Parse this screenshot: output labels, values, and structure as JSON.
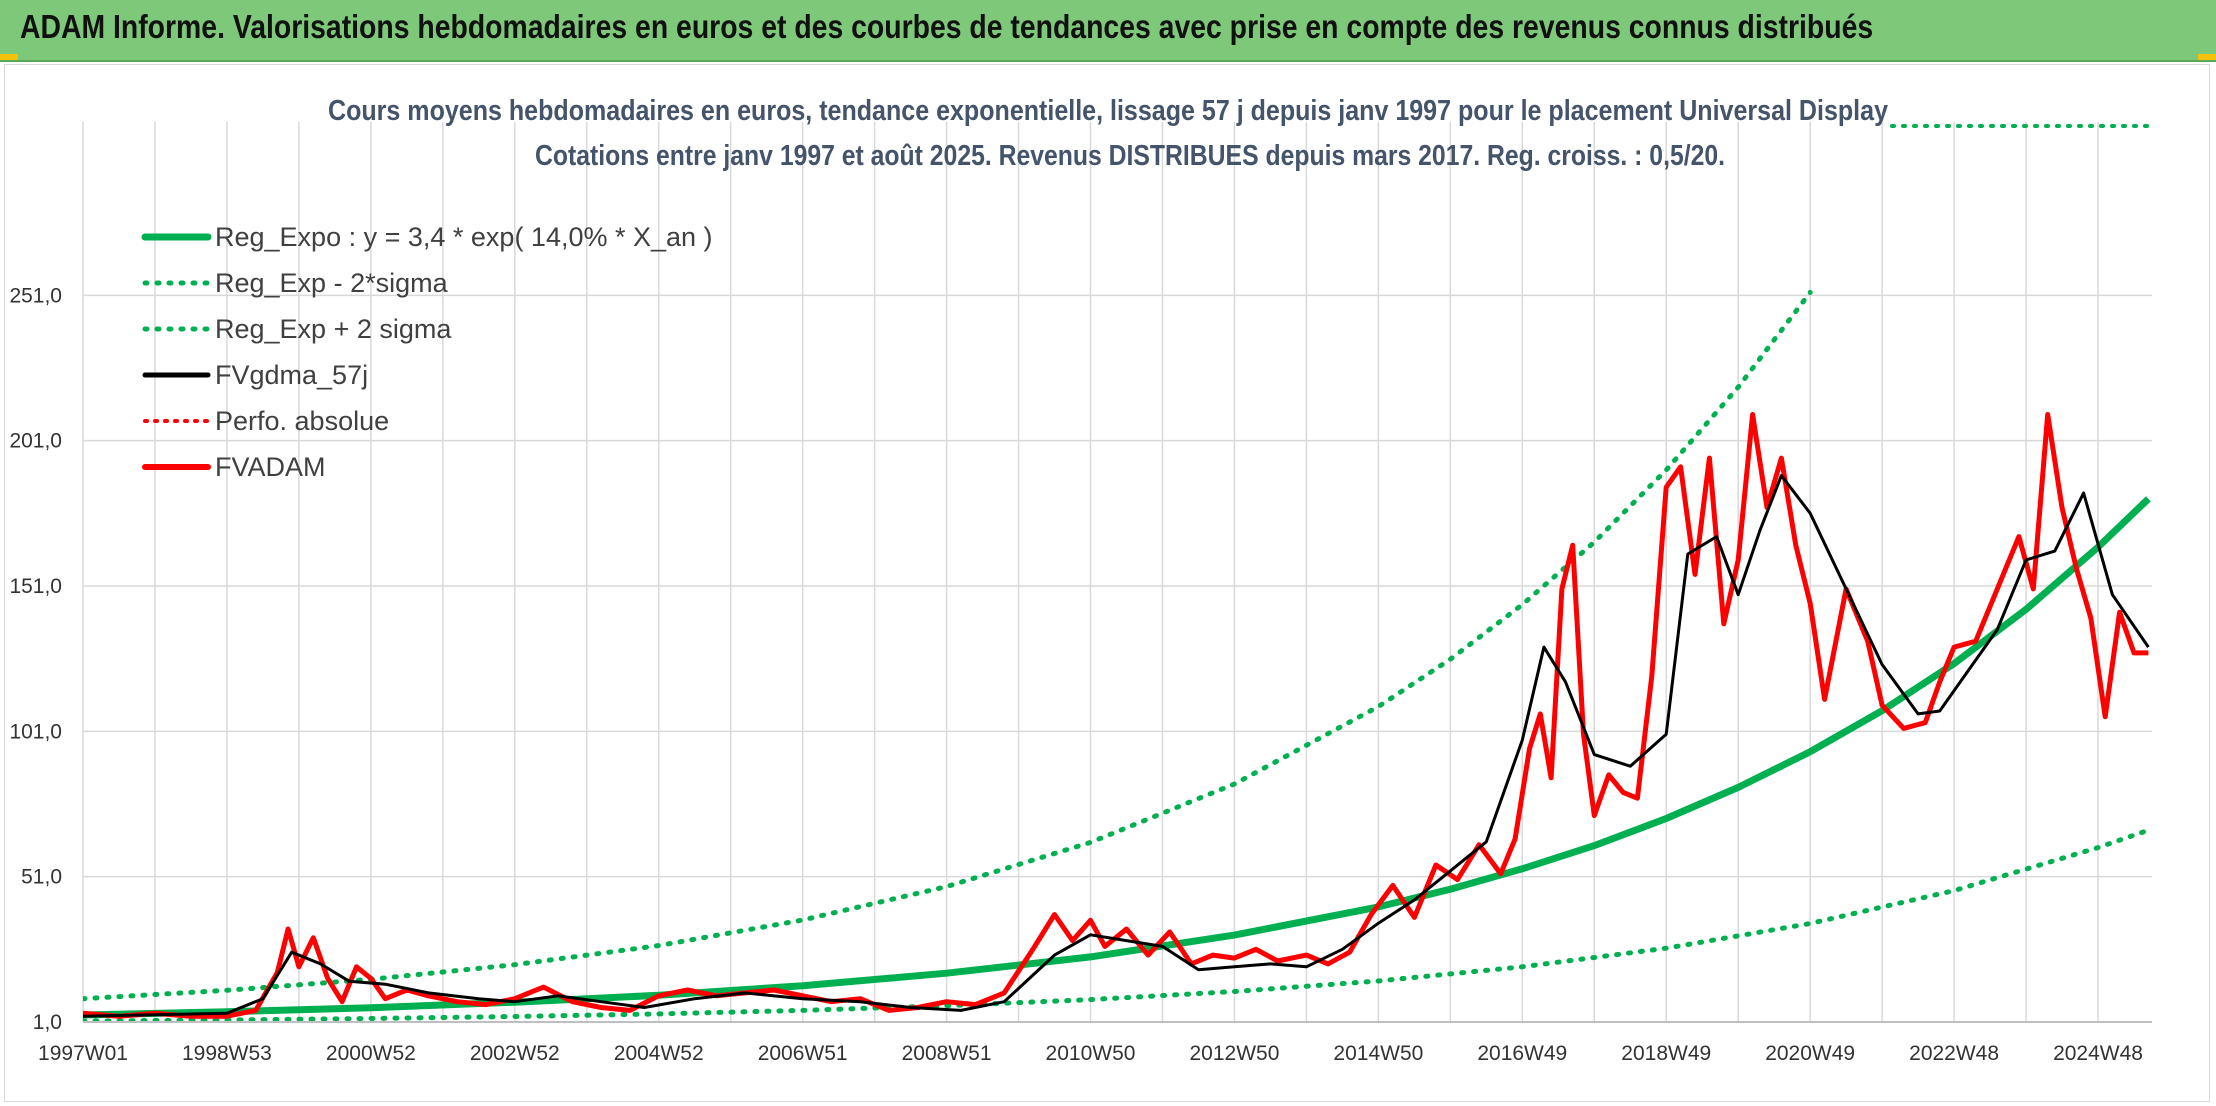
{
  "header": {
    "title": "ADAM Informe. Valorisations hebdomadaires en euros et des courbes de tendances avec prise en compte des revenus connus distribués"
  },
  "colors": {
    "header_bg": "#7ec87a",
    "reg_expo": "#00b050",
    "sigma": "#00b050",
    "fvgdma": "#000000",
    "perfo": "#ff0000",
    "fvadam": "#ff0000",
    "grid": "#d9d9d9"
  },
  "chart_data": {
    "type": "line",
    "title": "Cours moyens hebdomadaires en euros, tendance exponentielle, lissage 57 j depuis janv 1997 pour le placement Universal Display",
    "subtitle": "Cotations entre janv 1997 et août 2025. Revenus DISTRIBUES depuis mars 2017. Reg. croiss. : 0,5/20.",
    "xlabel": "",
    "ylabel": "",
    "x_tick_labels": [
      "1997W01",
      "1998W53",
      "2000W52",
      "2002W52",
      "2004W52",
      "2006W51",
      "2008W51",
      "2010W50",
      "2012W50",
      "2014W50",
      "2016W49",
      "2018W49",
      "2020W49",
      "2022W48",
      "2024W48"
    ],
    "x_tick_years": [
      1997.0,
      1999.0,
      2001.0,
      2003.0,
      2005.0,
      2007.0,
      2009.0,
      2011.0,
      2013.0,
      2015.0,
      2017.0,
      2019.0,
      2021.0,
      2023.0,
      2025.0
    ],
    "xlim": [
      1997.0,
      2025.75
    ],
    "y_tick_labels": [
      "1,0",
      "51,0",
      "101,0",
      "151,0",
      "201,0",
      "251,0"
    ],
    "y_ticks": [
      1,
      51,
      101,
      151,
      201,
      251
    ],
    "ylim": [
      1,
      290
    ],
    "grid": true,
    "legend_position": "top-left",
    "legend": [
      "Reg_Expo : y = 3,4 * exp( 14,0% *  X_an )",
      "Reg_Exp - 2*sigma",
      "Reg_Exp + 2 sigma",
      "FVgdma_57j",
      "Perfo. absolue",
      "FVADAM"
    ],
    "series": [
      {
        "name": "Reg_Expo : y = 3,4 * exp( 14,0% *  X_an )",
        "style": "solid-thick",
        "color": "#00b050",
        "x": [
          1997.0,
          1999.0,
          2001.0,
          2003.0,
          2005.0,
          2007.0,
          2009.0,
          2011.0,
          2013.0,
          2015.0,
          2016.0,
          2017.0,
          2018.0,
          2019.0,
          2020.0,
          2021.0,
          2022.0,
          2023.0,
          2024.0,
          2025.0,
          2025.7
        ],
        "y": [
          3.4,
          4.5,
          5.9,
          7.8,
          10.2,
          13.5,
          17.8,
          23.4,
          30.9,
          40.6,
          46.7,
          53.7,
          61.7,
          71.0,
          81.7,
          94.0,
          108.1,
          124.3,
          143.0,
          164.4,
          181.0
        ]
      },
      {
        "name": "Reg_Exp - 2*sigma",
        "style": "dotted",
        "color": "#00b050",
        "x": [
          1997.0,
          1999.0,
          2001.0,
          2003.0,
          2005.0,
          2007.0,
          2009.0,
          2011.0,
          2013.0,
          2015.0,
          2017.0,
          2019.0,
          2021.0,
          2023.0,
          2025.0,
          2025.7
        ],
        "y": [
          1.3,
          1.7,
          2.2,
          2.9,
          3.8,
          5.0,
          6.6,
          8.7,
          11.5,
          15.1,
          20.0,
          26.4,
          34.9,
          46.2,
          61.0,
          67.0
        ]
      },
      {
        "name": "Reg_Exp + 2 sigma",
        "style": "dotted",
        "color": "#00b050",
        "x": [
          1997.0,
          1999.0,
          2001.0,
          2003.0,
          2005.0,
          2007.0,
          2009.0,
          2011.0,
          2013.0,
          2015.0,
          2016.0,
          2017.0,
          2018.0,
          2019.0,
          2020.0,
          2021.0
        ],
        "y": [
          9.0,
          11.9,
          15.7,
          20.7,
          27.3,
          36.1,
          47.6,
          62.8,
          82.9,
          109.5,
          125.8,
          144.6,
          166.1,
          190.9,
          219.4,
          252.0
        ]
      },
      {
        "name": "FVgdma_57j",
        "style": "solid",
        "color": "#000000",
        "x": [
          1997.0,
          1998.0,
          1999.0,
          1999.5,
          1999.9,
          2000.3,
          2000.7,
          2001.2,
          2001.8,
          2002.5,
          2003.0,
          2003.6,
          2004.2,
          2004.8,
          2005.5,
          2006.2,
          2007.0,
          2007.8,
          2008.5,
          2009.2,
          2009.8,
          2010.5,
          2011.0,
          2011.5,
          2012.0,
          2012.5,
          2013.0,
          2013.5,
          2014.0,
          2014.5,
          2015.0,
          2015.5,
          2016.0,
          2016.5,
          2017.0,
          2017.3,
          2017.6,
          2018.0,
          2018.5,
          2019.0,
          2019.3,
          2019.7,
          2020.0,
          2020.3,
          2020.6,
          2021.0,
          2021.5,
          2022.0,
          2022.5,
          2022.8,
          2023.2,
          2023.6,
          2024.0,
          2024.4,
          2024.8,
          2025.2,
          2025.7
        ],
        "y": [
          3,
          3.5,
          4,
          9,
          25,
          21,
          15,
          14,
          11,
          9,
          8,
          10,
          8,
          6,
          9,
          11,
          9,
          8,
          6,
          5,
          8,
          24,
          31,
          29,
          27,
          19,
          20,
          21,
          20,
          26,
          35,
          43,
          53,
          63,
          98,
          130,
          118,
          93,
          89,
          100,
          162,
          168,
          148,
          170,
          189,
          176,
          150,
          124,
          107,
          108,
          122,
          136,
          160,
          163,
          183,
          148,
          130
        ]
      },
      {
        "name": "FVADAM",
        "style": "solid-thick",
        "color": "#ff0000",
        "x": [
          1997.0,
          1997.5,
          1998.0,
          1998.5,
          1999.0,
          1999.4,
          1999.7,
          1999.85,
          2000.0,
          2000.2,
          2000.4,
          2000.6,
          2000.8,
          2001.0,
          2001.2,
          2001.5,
          2001.8,
          2002.2,
          2002.6,
          2003.0,
          2003.4,
          2003.8,
          2004.2,
          2004.6,
          2005.0,
          2005.4,
          2005.8,
          2006.2,
          2006.6,
          2007.0,
          2007.4,
          2007.8,
          2008.2,
          2008.6,
          2009.0,
          2009.4,
          2009.8,
          2010.2,
          2010.5,
          2010.75,
          2011.0,
          2011.2,
          2011.5,
          2011.8,
          2012.1,
          2012.4,
          2012.7,
          2013.0,
          2013.3,
          2013.6,
          2014.0,
          2014.3,
          2014.6,
          2014.9,
          2015.2,
          2015.5,
          2015.8,
          2016.1,
          2016.4,
          2016.7,
          2016.9,
          2017.1,
          2017.25,
          2017.4,
          2017.55,
          2017.7,
          2017.85,
          2018.0,
          2018.2,
          2018.4,
          2018.6,
          2018.8,
          2019.0,
          2019.2,
          2019.4,
          2019.6,
          2019.8,
          2020.0,
          2020.2,
          2020.4,
          2020.6,
          2020.8,
          2021.0,
          2021.2,
          2021.5,
          2021.8,
          2022.0,
          2022.3,
          2022.6,
          2022.8,
          2023.0,
          2023.3,
          2023.6,
          2023.9,
          2024.1,
          2024.3,
          2024.5,
          2024.7,
          2024.9,
          2025.1,
          2025.3,
          2025.5,
          2025.7
        ],
        "y": [
          4,
          3,
          4,
          3,
          3,
          5,
          18,
          33,
          20,
          30,
          16,
          8,
          20,
          16,
          9,
          12,
          10,
          8,
          7,
          9,
          13,
          8,
          6,
          5,
          10,
          12,
          10,
          11,
          12,
          10,
          8,
          9,
          5,
          6,
          8,
          7,
          11,
          26,
          38,
          29,
          36,
          27,
          33,
          24,
          32,
          21,
          24,
          23,
          26,
          22,
          24,
          21,
          25,
          38,
          48,
          37,
          55,
          50,
          62,
          52,
          64,
          95,
          107,
          85,
          150,
          165,
          100,
          72,
          86,
          80,
          78,
          120,
          185,
          192,
          155,
          195,
          138,
          160,
          210,
          178,
          195,
          165,
          145,
          112,
          150,
          132,
          110,
          102,
          104,
          118,
          130,
          132,
          150,
          168,
          150,
          210,
          178,
          157,
          140,
          106,
          142,
          128,
          128
        ]
      }
    ]
  }
}
